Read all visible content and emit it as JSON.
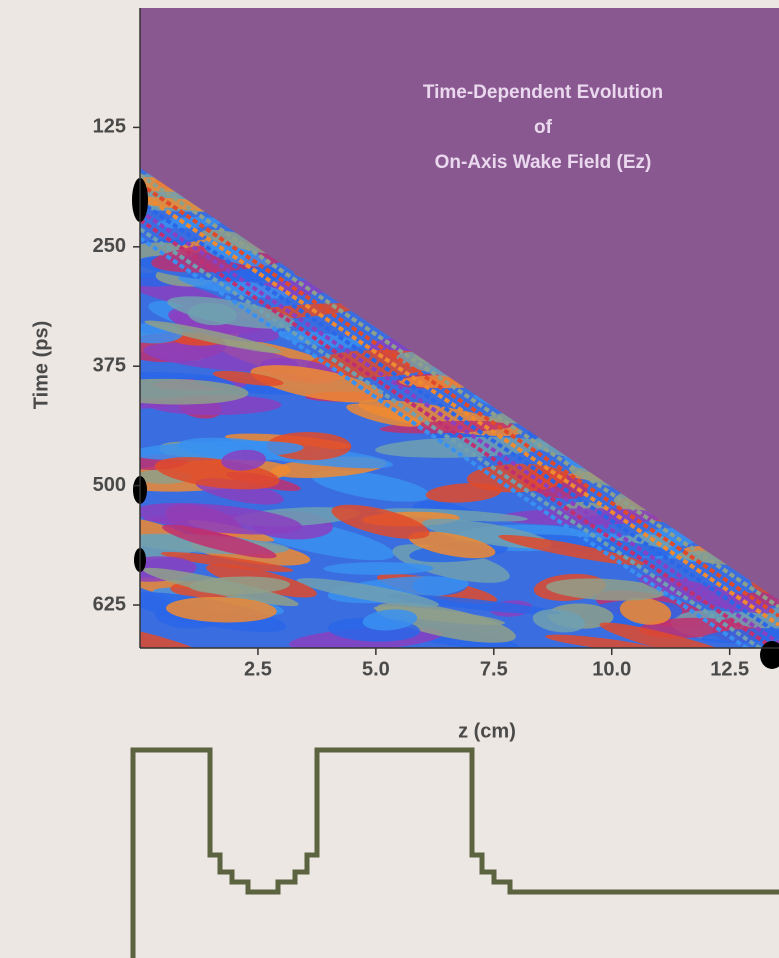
{
  "chart_data": {
    "type": "contour",
    "title": [
      "Time-Dependent Evolution",
      "of",
      "On-Axis Wake Field  (Ez)"
    ],
    "x_label": "z  (cm)",
    "y_label": "Time  (ps)",
    "xlim": [
      0,
      13.8
    ],
    "xticks": [
      2.5,
      {
        "value": 5,
        "label": "5.0"
      },
      7.5,
      {
        "value": 10,
        "label": "10.0"
      },
      12.5
    ],
    "ylim": [
      0,
      670
    ],
    "yticks": [
      125,
      250,
      375,
      500,
      625
    ],
    "y_inverted": true,
    "color": "#8a5890"
  }
}
